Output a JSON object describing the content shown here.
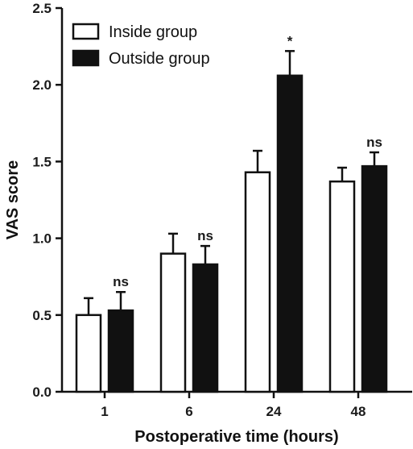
{
  "chart_data": {
    "type": "bar",
    "title": "",
    "xlabel": "Postoperative time (hours)",
    "ylabel": "VAS score",
    "ylim": [
      0,
      2.5
    ],
    "yticks": [
      "0.0",
      "0.5",
      "1.0",
      "1.5",
      "2.0",
      "2.5"
    ],
    "categories": [
      "1",
      "6",
      "24",
      "48"
    ],
    "series": [
      {
        "name": "Inside group",
        "values": [
          0.5,
          0.9,
          1.43,
          1.37
        ],
        "errors": [
          0.11,
          0.13,
          0.14,
          0.09
        ],
        "fill": "#ffffff"
      },
      {
        "name": "Outside group",
        "values": [
          0.53,
          0.83,
          2.06,
          1.47
        ],
        "errors": [
          0.12,
          0.12,
          0.16,
          0.09
        ],
        "fill": "#111111"
      }
    ],
    "annotations": [
      "ns",
      "ns",
      "*",
      "ns"
    ],
    "legend": "top-left",
    "grid": false
  }
}
